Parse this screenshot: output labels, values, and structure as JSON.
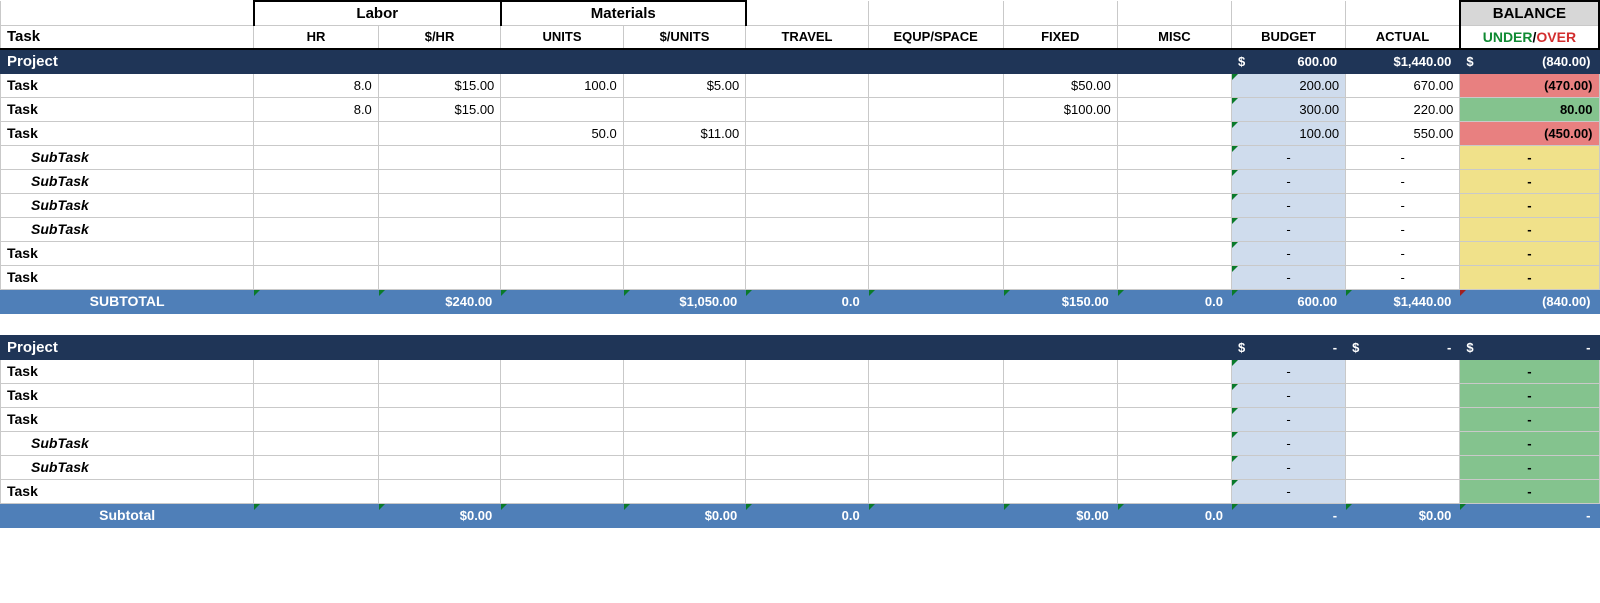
{
  "colors": {
    "project_bg": "#1f3557",
    "subtotal_bg": "#4f7fb8",
    "budget_bg": "#cfdced",
    "bal_red": "#e88080",
    "bal_green": "#84c38e",
    "bal_yellow": "#f0e18a",
    "header_gray": "#d7d7d7",
    "tri_green": "#0a7a2a",
    "tri_red": "#a02020",
    "under_text": "#0f8a32",
    "over_text": "#d22e2e"
  },
  "headers": {
    "task": "Task",
    "labor_group": "Labor",
    "materials_group": "Materials",
    "hr": "HR",
    "hr_rate": "$/HR",
    "units": "UNITS",
    "unit_rate": "$/UNITS",
    "travel": "TRAVEL",
    "equip": "EQUP/SPACE",
    "fixed": "FIXED",
    "misc": "MISC",
    "budget": "BUDGET",
    "actual": "ACTUAL",
    "balance": "BALANCE",
    "under": "UNDER",
    "slash": "/",
    "over": "OVER"
  },
  "p1": {
    "label": "Project",
    "budget_sym": "$",
    "budget": "600.00",
    "actual": "$1,440.00",
    "bal_sym": "$",
    "bal": "(840.00)",
    "rows": [
      {
        "type": "task",
        "label": "Task",
        "hr": "8.0",
        "rate": "$15.00",
        "units": "100.0",
        "urate": "$5.00",
        "travel": "",
        "equip": "",
        "fixed": "$50.00",
        "misc": "",
        "budget": "200.00",
        "actual": "670.00",
        "bal": "(470.00)",
        "bal_cls": "bal-red"
      },
      {
        "type": "task",
        "label": "Task",
        "hr": "8.0",
        "rate": "$15.00",
        "units": "",
        "urate": "",
        "travel": "",
        "equip": "",
        "fixed": "$100.00",
        "misc": "",
        "budget": "300.00",
        "actual": "220.00",
        "bal": "80.00",
        "bal_cls": "bal-green"
      },
      {
        "type": "task",
        "label": "Task",
        "hr": "",
        "rate": "",
        "units": "50.0",
        "urate": "$11.00",
        "travel": "",
        "equip": "",
        "fixed": "",
        "misc": "",
        "budget": "100.00",
        "actual": "550.00",
        "bal": "(450.00)",
        "bal_cls": "bal-red"
      },
      {
        "type": "sub",
        "label": "SubTask",
        "budget": "-",
        "actual": "-",
        "bal": "-",
        "bal_cls": "bal-yellow"
      },
      {
        "type": "sub",
        "label": "SubTask",
        "budget": "-",
        "actual": "-",
        "bal": "-",
        "bal_cls": "bal-yellow"
      },
      {
        "type": "sub",
        "label": "SubTask",
        "budget": "-",
        "actual": "-",
        "bal": "-",
        "bal_cls": "bal-yellow"
      },
      {
        "type": "sub",
        "label": "SubTask",
        "budget": "-",
        "actual": "-",
        "bal": "-",
        "bal_cls": "bal-yellow"
      },
      {
        "type": "task",
        "label": "Task",
        "budget": "-",
        "actual": "-",
        "bal": "-",
        "bal_cls": "bal-yellow"
      },
      {
        "type": "task",
        "label": "Task",
        "budget": "-",
        "actual": "-",
        "bal": "-",
        "bal_cls": "bal-yellow"
      }
    ],
    "subtotal": {
      "label": "SUBTOTAL",
      "rate": "$240.00",
      "urate": "$1,050.00",
      "travel": "0.0",
      "fixed": "$150.00",
      "misc": "0.0",
      "budget": "600.00",
      "actual": "$1,440.00",
      "bal": "(840.00)"
    }
  },
  "p2": {
    "label": "Project",
    "budget_sym": "$",
    "budget": "-",
    "actual_sym": "$",
    "actual": "-",
    "bal_sym": "$",
    "bal": "-",
    "rows": [
      {
        "type": "task",
        "label": "Task",
        "budget": "-",
        "actual": "",
        "bal": "-",
        "bal_cls": "bal-green"
      },
      {
        "type": "task",
        "label": "Task",
        "budget": "-",
        "actual": "",
        "bal": "-",
        "bal_cls": "bal-green"
      },
      {
        "type": "task",
        "label": "Task",
        "budget": "-",
        "actual": "",
        "bal": "-",
        "bal_cls": "bal-green"
      },
      {
        "type": "sub",
        "label": "SubTask",
        "budget": "-",
        "actual": "",
        "bal": "-",
        "bal_cls": "bal-green"
      },
      {
        "type": "sub",
        "label": "SubTask",
        "budget": "-",
        "actual": "",
        "bal": "-",
        "bal_cls": "bal-green"
      },
      {
        "type": "task",
        "label": "Task",
        "budget": "-",
        "actual": "",
        "bal": "-",
        "bal_cls": "bal-green"
      }
    ],
    "subtotal": {
      "label": "Subtotal",
      "rate": "$0.00",
      "urate": "$0.00",
      "travel": "0.0",
      "fixed": "$0.00",
      "misc": "0.0",
      "budget": "-",
      "actual": "$0.00",
      "bal": "-"
    }
  }
}
